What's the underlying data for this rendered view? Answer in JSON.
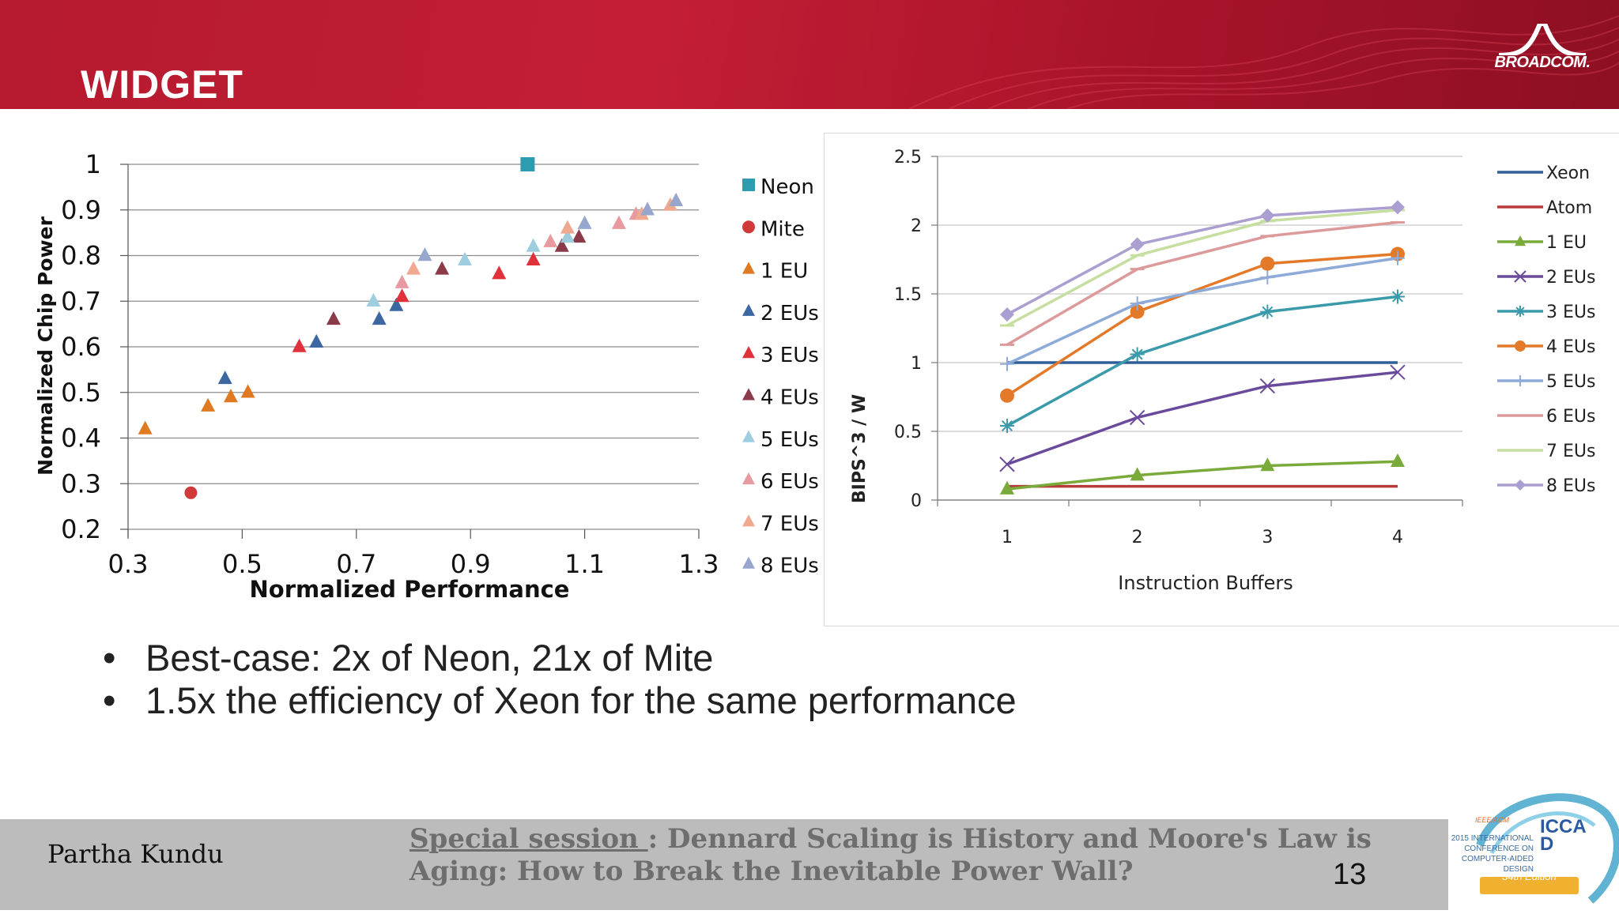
{
  "slide": {
    "title": "WIDGET",
    "logo_text": "BROADCOM.",
    "bullets": [
      "Best-case: 2x of Neon, 21x of Mite",
      "1.5x the efficiency of Xeon for the same performance"
    ],
    "footer": {
      "author": "Partha Kundu",
      "session_label": "Special session ",
      "session_title": ": Dennard Scaling is History and Moore's Law is Aging: How to Break the Inevitable Power Wall?",
      "page_number": "13",
      "conference_badge": {
        "org": "IEEE/ACM",
        "line1": "2015 INTERNATIONAL",
        "line2": "CONFERENCE ON",
        "line3": "COMPUTER-AIDED",
        "line4": "DESIGN",
        "acronym": "ICCAD",
        "edition": "34th Edition"
      }
    },
    "colors": {
      "header_red": "#c41e35",
      "footer_gray": "#bcbcbc"
    }
  },
  "chart_data": [
    {
      "type": "scatter",
      "title": "",
      "xlabel": "Normalized Performance",
      "ylabel": "Normalized Chip Power",
      "xlim": [
        0.3,
        1.3
      ],
      "ylim": [
        0.2,
        1.0
      ],
      "xticks": [
        "0.3",
        "0.5",
        "0.7",
        "0.9",
        "1.1",
        "1.3"
      ],
      "yticks": [
        "0.2",
        "0.3",
        "0.4",
        "0.5",
        "0.6",
        "0.7",
        "0.8",
        "0.9",
        "1"
      ],
      "grid": "horizontal",
      "legend": "right",
      "series": [
        {
          "name": "Neon",
          "marker": "square",
          "color": "#2e9bb1",
          "points": [
            [
              1.0,
              1.0
            ]
          ]
        },
        {
          "name": "Mite",
          "marker": "circle",
          "color": "#d03a3a",
          "points": [
            [
              0.41,
              0.28
            ]
          ]
        },
        {
          "name": "1 EU",
          "marker": "triangle",
          "color": "#e07a22",
          "points": [
            [
              0.33,
              0.42
            ],
            [
              0.44,
              0.47
            ],
            [
              0.48,
              0.49
            ],
            [
              0.51,
              0.5
            ]
          ]
        },
        {
          "name": "2 EUs",
          "marker": "triangle",
          "color": "#3c67a0",
          "points": [
            [
              0.47,
              0.53
            ],
            [
              0.63,
              0.61
            ],
            [
              0.74,
              0.66
            ],
            [
              0.77,
              0.69
            ]
          ]
        },
        {
          "name": "3 EUs",
          "marker": "triangle",
          "color": "#e0303a",
          "points": [
            [
              0.6,
              0.6
            ],
            [
              0.78,
              0.71
            ],
            [
              0.95,
              0.76
            ],
            [
              1.01,
              0.79
            ]
          ]
        },
        {
          "name": "4 EUs",
          "marker": "triangle",
          "color": "#8b3a4a",
          "points": [
            [
              0.66,
              0.66
            ],
            [
              0.85,
              0.77
            ],
            [
              1.06,
              0.82
            ],
            [
              1.09,
              0.84
            ]
          ]
        },
        {
          "name": "5 EUs",
          "marker": "triangle",
          "color": "#9fcde0",
          "points": [
            [
              0.73,
              0.7
            ],
            [
              0.89,
              0.79
            ],
            [
              1.01,
              0.82
            ],
            [
              1.07,
              0.84
            ]
          ]
        },
        {
          "name": "6 EUs",
          "marker": "triangle",
          "color": "#e89aa0",
          "points": [
            [
              0.78,
              0.74
            ],
            [
              1.04,
              0.83
            ],
            [
              1.16,
              0.87
            ],
            [
              1.19,
              0.89
            ]
          ]
        },
        {
          "name": "7 EUs",
          "marker": "triangle",
          "color": "#f0a890",
          "points": [
            [
              0.8,
              0.77
            ],
            [
              1.07,
              0.86
            ],
            [
              1.2,
              0.89
            ],
            [
              1.25,
              0.91
            ]
          ]
        },
        {
          "name": "8 EUs",
          "marker": "triangle",
          "color": "#96a6cc",
          "points": [
            [
              0.82,
              0.8
            ],
            [
              1.1,
              0.87
            ],
            [
              1.21,
              0.9
            ],
            [
              1.26,
              0.92
            ]
          ]
        }
      ]
    },
    {
      "type": "line",
      "title": "",
      "xlabel": "Instruction Buffers",
      "ylabel": "BIPS^3 / W",
      "x": [
        1,
        2,
        3,
        4
      ],
      "xticks": [
        "1",
        "2",
        "3",
        "4"
      ],
      "yticks": [
        "0",
        "0.5",
        "1",
        "1.5",
        "2",
        "2.5"
      ],
      "ylim": [
        0,
        2.5
      ],
      "grid": "horizontal",
      "legend": "right",
      "series": [
        {
          "name": "Xeon",
          "marker": "none",
          "color": "#2f5f98",
          "values": [
            1.0,
            1.0,
            1.0,
            1.0
          ]
        },
        {
          "name": "Atom",
          "marker": "none",
          "color": "#b83a3a",
          "values": [
            0.1,
            0.1,
            0.1,
            0.1
          ]
        },
        {
          "name": "1 EU",
          "marker": "triangle",
          "color": "#7aaa3a",
          "values": [
            0.08,
            0.18,
            0.25,
            0.28
          ]
        },
        {
          "name": "2 EUs",
          "marker": "x",
          "color": "#6a4a9a",
          "values": [
            0.26,
            0.6,
            0.83,
            0.93
          ]
        },
        {
          "name": "3 EUs",
          "marker": "star",
          "color": "#3a9aaa",
          "values": [
            0.54,
            1.06,
            1.37,
            1.48
          ]
        },
        {
          "name": "4 EUs",
          "marker": "circle",
          "color": "#e27a2a",
          "values": [
            0.76,
            1.37,
            1.72,
            1.79
          ]
        },
        {
          "name": "5 EUs",
          "marker": "plus",
          "color": "#8eaad8",
          "values": [
            0.99,
            1.43,
            1.62,
            1.76
          ]
        },
        {
          "name": "6 EUs",
          "marker": "dash",
          "color": "#dc9a9a",
          "values": [
            1.13,
            1.68,
            1.92,
            2.02
          ]
        },
        {
          "name": "7 EUs",
          "marker": "dash",
          "color": "#c6dea0",
          "values": [
            1.27,
            1.78,
            2.03,
            2.11
          ]
        },
        {
          "name": "8 EUs",
          "marker": "diamond",
          "color": "#ab9ed0",
          "values": [
            1.35,
            1.86,
            2.07,
            2.13
          ]
        }
      ]
    }
  ]
}
